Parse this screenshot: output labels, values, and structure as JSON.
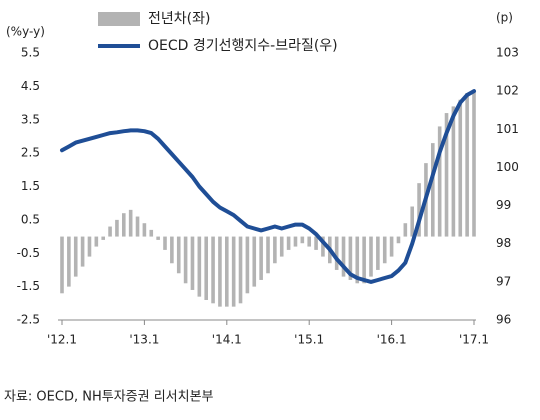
{
  "chart_data": {
    "type": "bar-line",
    "y_label": "(%y-y)",
    "y2_label": "(p)",
    "categories": [
      "'12.1",
      null,
      null,
      null,
      null,
      null,
      null,
      null,
      null,
      null,
      null,
      null,
      "'13.1",
      null,
      null,
      null,
      null,
      null,
      null,
      null,
      null,
      null,
      null,
      null,
      "'14.1",
      null,
      null,
      null,
      null,
      null,
      null,
      null,
      null,
      null,
      null,
      null,
      "'15.1",
      null,
      null,
      null,
      null,
      null,
      null,
      null,
      null,
      null,
      null,
      null,
      "'16.1",
      null,
      null,
      null,
      null,
      null,
      null,
      null,
      null,
      null,
      null,
      null,
      "'17.1"
    ],
    "series": [
      {
        "name": "전년차(좌)",
        "type": "bar",
        "color": "#b3b3b3",
        "values": [
          -1.7,
          -1.5,
          -1.2,
          -0.9,
          -0.6,
          -0.3,
          -0.1,
          0.3,
          0.5,
          0.7,
          0.8,
          0.6,
          0.4,
          0.2,
          -0.1,
          -0.4,
          -0.8,
          -1.1,
          -1.4,
          -1.6,
          -1.8,
          -1.9,
          -2.0,
          -2.1,
          -2.1,
          -2.1,
          -2.0,
          -1.7,
          -1.5,
          -1.3,
          -1.1,
          -0.8,
          -0.6,
          -0.4,
          -0.3,
          -0.2,
          -0.3,
          -0.4,
          -0.6,
          -0.8,
          -1.0,
          -1.2,
          -1.3,
          -1.4,
          -1.4,
          -1.2,
          -1.0,
          -0.8,
          -0.6,
          -0.2,
          0.4,
          0.9,
          1.6,
          2.2,
          2.8,
          3.3,
          3.7,
          3.9,
          4.1,
          4.3,
          4.4
        ]
      },
      {
        "name": "OECD 경기선행지수-브라질(우)",
        "type": "line",
        "axis": "y2",
        "color": "#1f4e96",
        "values": [
          100.45,
          100.55,
          100.65,
          100.7,
          100.75,
          100.8,
          100.85,
          100.9,
          100.92,
          100.95,
          100.97,
          100.97,
          100.95,
          100.9,
          100.75,
          100.55,
          100.35,
          100.15,
          99.95,
          99.75,
          99.5,
          99.3,
          99.1,
          98.95,
          98.85,
          98.75,
          98.6,
          98.45,
          98.4,
          98.35,
          98.4,
          98.45,
          98.4,
          98.45,
          98.5,
          98.5,
          98.4,
          98.25,
          98.05,
          97.85,
          97.6,
          97.4,
          97.2,
          97.1,
          97.05,
          97.0,
          97.05,
          97.1,
          97.15,
          97.3,
          97.5,
          98.0,
          98.6,
          99.2,
          99.8,
          100.4,
          100.9,
          101.35,
          101.7,
          101.9,
          102.0
        ]
      }
    ],
    "ylim": [
      -2.5,
      5.5
    ],
    "yticks": [
      5.5,
      4.5,
      3.5,
      2.5,
      1.5,
      0.5,
      -0.5,
      -1.5,
      -2.5
    ],
    "y2lim": [
      96,
      103
    ],
    "y2ticks": [
      103,
      102,
      101,
      100,
      99,
      98,
      97,
      96
    ],
    "source": "자료: OECD, NH투자증권 리서치본부"
  }
}
